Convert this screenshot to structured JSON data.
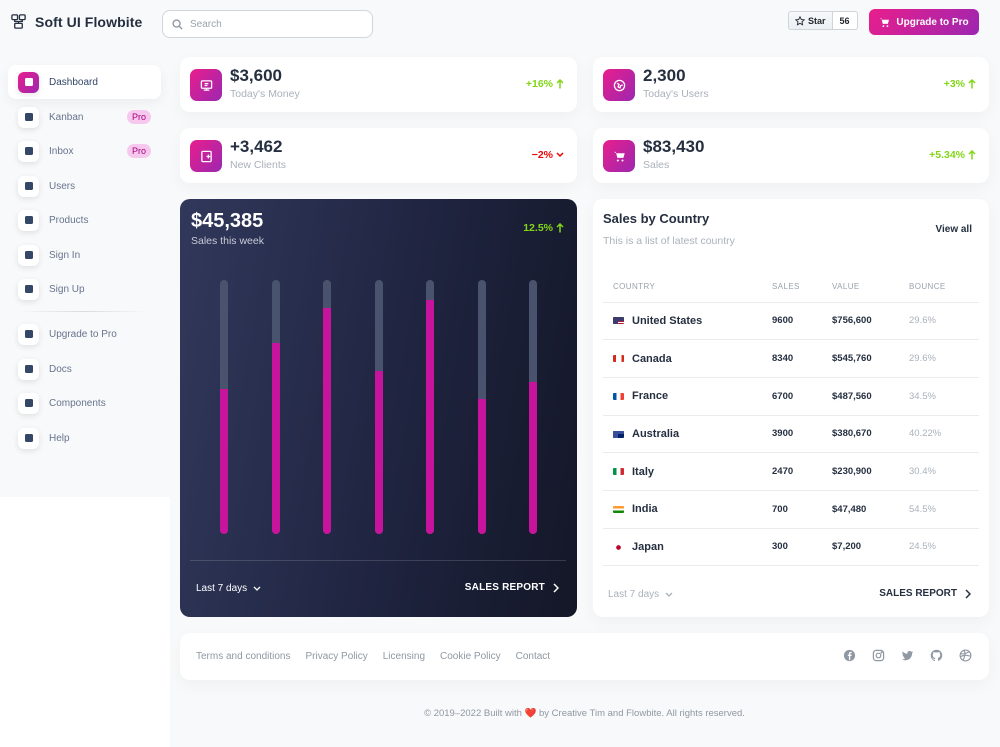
{
  "brand": {
    "name": "Soft UI Flowbite"
  },
  "search": {
    "placeholder": "Search"
  },
  "github": {
    "star_label": "Star",
    "star_count": "56"
  },
  "header": {
    "upgrade_label": "Upgrade to Pro"
  },
  "sidebar": {
    "items": [
      {
        "label": "Dashboard",
        "icon": "dashboard-icon",
        "active": true
      },
      {
        "label": "Kanban",
        "icon": "kanban-icon",
        "badge": "Pro"
      },
      {
        "label": "Inbox",
        "icon": "inbox-icon",
        "badge": "Pro"
      },
      {
        "label": "Users",
        "icon": "users-icon"
      },
      {
        "label": "Products",
        "icon": "products-icon"
      },
      {
        "label": "Sign In",
        "icon": "sign-in-icon"
      },
      {
        "label": "Sign Up",
        "icon": "sign-up-icon"
      },
      {
        "label": "Upgrade to Pro",
        "icon": "upgrade-icon"
      },
      {
        "label": "Docs",
        "icon": "docs-icon"
      },
      {
        "label": "Components",
        "icon": "components-icon"
      },
      {
        "label": "Help",
        "icon": "help-icon"
      }
    ]
  },
  "stats": [
    {
      "value": "$3,600",
      "label": "Today's Money",
      "change": "+16%",
      "trend": "up",
      "icon": "money-icon"
    },
    {
      "value": "2,300",
      "label": "Today's Users",
      "change": "+3%",
      "trend": "up",
      "icon": "globe-icon"
    },
    {
      "value": "+3,462",
      "label": "New Clients",
      "change": "−2%",
      "trend": "down",
      "icon": "clients-icon"
    },
    {
      "value": "$83,430",
      "label": "Sales",
      "change": "+5.34%",
      "trend": "up",
      "icon": "cart-icon"
    }
  ],
  "weekly": {
    "value": "$45,385",
    "label": "Sales this week",
    "change": "12.5%",
    "period": "Last 7 days",
    "report": "SALES REPORT",
    "bar_fractions": [
      0.57,
      0.75,
      0.89,
      0.64,
      0.92,
      0.53,
      0.6
    ]
  },
  "sales_by_country": {
    "title": "Sales by Country",
    "subtitle": "This is a list of latest country",
    "view_all": "View all",
    "columns": [
      "Country",
      "Sales",
      "Value",
      "Bounce"
    ],
    "rows": [
      {
        "country": "United States",
        "sales": "9600",
        "value": "$756,600",
        "bounce": "29.6%",
        "flag": "flag-us-icon"
      },
      {
        "country": "Canada",
        "sales": "8340",
        "value": "$545,760",
        "bounce": "29.6%",
        "flag": "flag-ca-icon"
      },
      {
        "country": "France",
        "sales": "6700",
        "value": "$487,560",
        "bounce": "34.5%",
        "flag": "flag-fr-icon"
      },
      {
        "country": "Australia",
        "sales": "3900",
        "value": "$380,670",
        "bounce": "40.22%",
        "flag": "flag-au-icon"
      },
      {
        "country": "Italy",
        "sales": "2470",
        "value": "$230,900",
        "bounce": "30.4%",
        "flag": "flag-it-icon"
      },
      {
        "country": "India",
        "sales": "700",
        "value": "$47,480",
        "bounce": "54.5%",
        "flag": "flag-in-icon"
      },
      {
        "country": "Japan",
        "sales": "300",
        "value": "$7,200",
        "bounce": "24.5%",
        "flag": "flag-jp-icon"
      }
    ],
    "period": "Last 7 days",
    "report": "SALES REPORT"
  },
  "footer": {
    "links": [
      "Terms and conditions",
      "Privacy Policy",
      "Licensing",
      "Cookie Policy",
      "Contact"
    ],
    "social_icons": [
      "facebook-icon",
      "instagram-icon",
      "twitter-icon",
      "github-icon",
      "dribbble-icon"
    ],
    "copyright": "© 2019–2022 Built with ❤️ by Creative Tim and Flowbite. All rights reserved."
  },
  "colors": {
    "accent": "#c8139c",
    "positive": "#82d616",
    "negative": "#ea0606",
    "dark_card": "#1f2440"
  }
}
